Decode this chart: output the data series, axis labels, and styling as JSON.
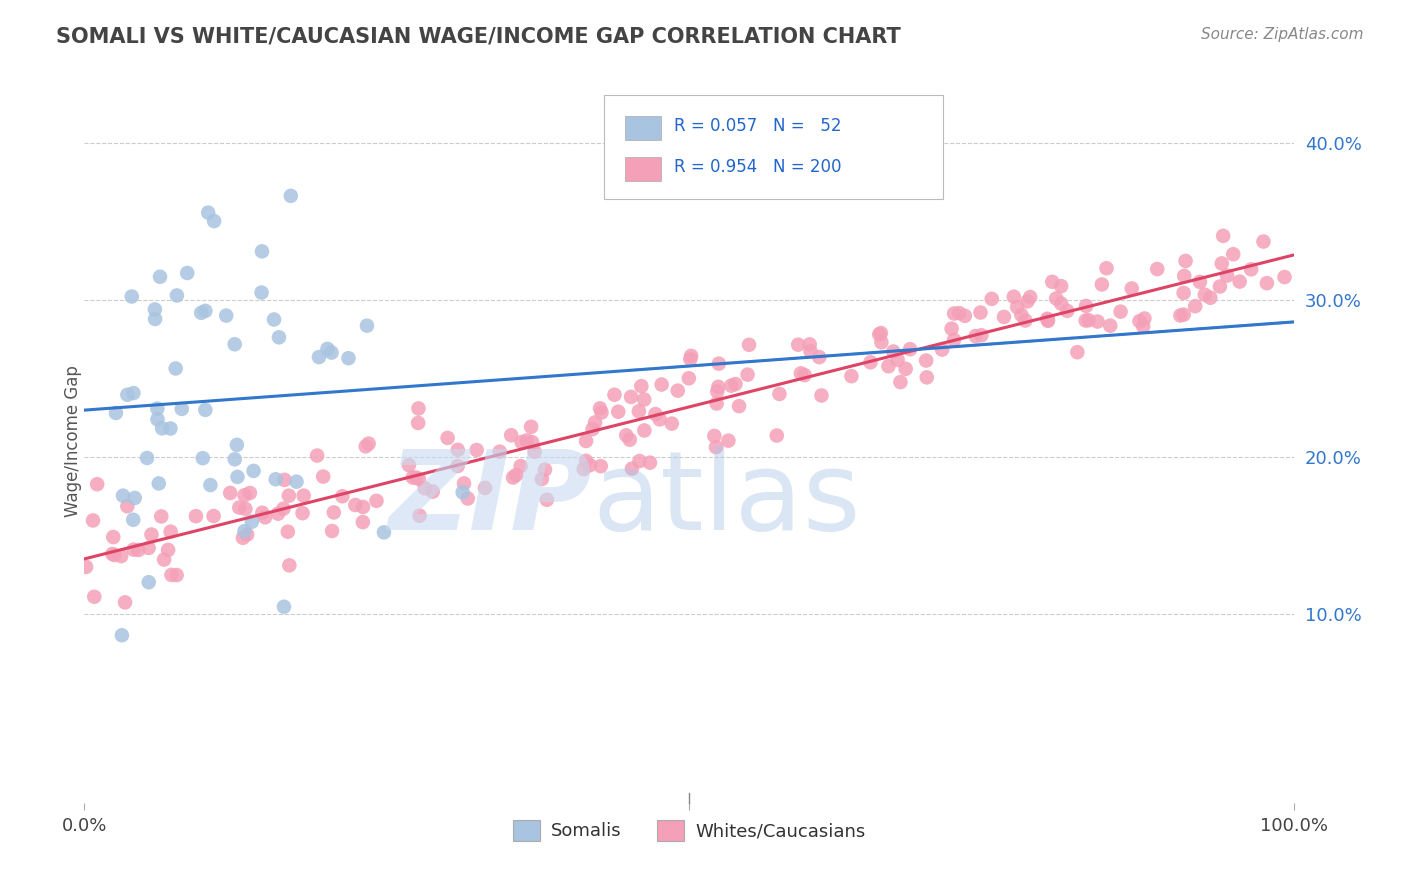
{
  "title": "SOMALI VS WHITE/CAUCASIAN WAGE/INCOME GAP CORRELATION CHART",
  "source": "Source: ZipAtlas.com",
  "ylabel": "Wage/Income Gap",
  "yticks": [
    "10.0%",
    "20.0%",
    "30.0%",
    "40.0%"
  ],
  "ytick_vals": [
    0.1,
    0.2,
    0.3,
    0.4
  ],
  "xlim": [
    0.0,
    1.0
  ],
  "ylim": [
    -0.02,
    0.44
  ],
  "somali_R": "0.057",
  "somali_N": "52",
  "white_R": "0.954",
  "white_N": "200",
  "somali_color": "#a8c4e0",
  "white_color": "#f4a0b8",
  "somali_line_color": "#3377cc",
  "white_line_color": "#dd4466",
  "dash_color": "#88bbdd",
  "legend_somali_label": "Somalis",
  "legend_white_label": "Whites/Caucasians",
  "watermark_zip": "ZIP",
  "watermark_atlas": "atlas",
  "background_color": "#ffffff",
  "grid_color": "#cccccc",
  "title_color": "#444444",
  "source_color": "#888888",
  "ylabel_color": "#555555",
  "ytick_color": "#3377cc",
  "xtick_color": "#444444"
}
